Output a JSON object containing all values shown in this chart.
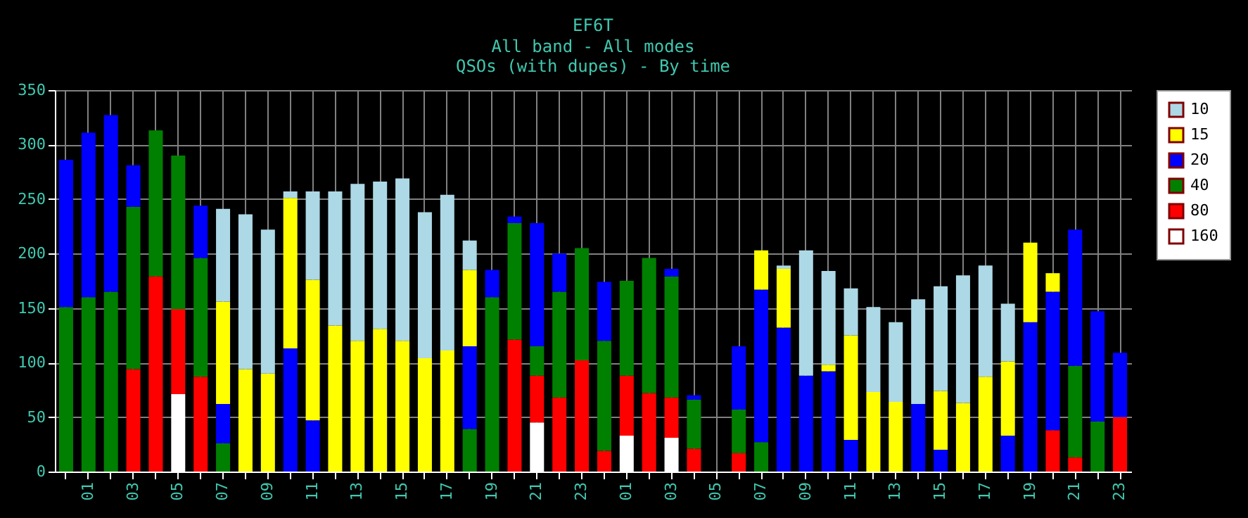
{
  "chart_data": {
    "type": "bar",
    "title": "EF6T",
    "subtitle": "All band - All modes\nQSOs (with dupes) - By time",
    "categories": [
      null,
      "01",
      null,
      "03",
      null,
      "05",
      null,
      "07",
      null,
      "09",
      null,
      "11",
      null,
      "13",
      null,
      "15",
      null,
      "17",
      null,
      "19",
      null,
      "21",
      null,
      "23",
      null,
      "01",
      null,
      "03",
      null,
      "05",
      null,
      "07",
      null,
      "09",
      null,
      "11",
      null,
      "13",
      null,
      "15",
      null,
      "17",
      null,
      "19",
      null,
      "21",
      null,
      "23"
    ],
    "stacked": true,
    "ylim": [
      0,
      350
    ],
    "yticks": [
      0,
      50,
      100,
      150,
      200,
      250,
      300,
      350
    ],
    "grid": true,
    "legend": "top right",
    "series": [
      {
        "name": "160",
        "color": "#ffffff",
        "values": [
          null,
          null,
          null,
          null,
          null,
          71,
          null,
          null,
          null,
          null,
          null,
          null,
          null,
          null,
          null,
          null,
          null,
          null,
          null,
          null,
          null,
          45,
          null,
          null,
          null,
          33,
          null,
          31,
          null,
          null,
          null,
          null,
          null,
          null,
          null,
          null,
          null,
          null,
          null,
          null,
          null,
          null,
          null,
          null,
          null,
          null,
          null,
          null
        ]
      },
      {
        "name": "80",
        "color": "#ff0000",
        "values": [
          null,
          null,
          null,
          94,
          179,
          78,
          87,
          null,
          null,
          null,
          null,
          null,
          null,
          null,
          null,
          null,
          null,
          null,
          null,
          null,
          121,
          43,
          68,
          102,
          19,
          55,
          72,
          37,
          21,
          null,
          17,
          null,
          null,
          null,
          null,
          null,
          null,
          null,
          null,
          null,
          null,
          null,
          null,
          null,
          38,
          13,
          null,
          50
        ]
      },
      {
        "name": "40",
        "color": "#008000",
        "values": [
          151,
          160,
          165,
          149,
          134,
          141,
          109,
          26,
          null,
          null,
          null,
          null,
          null,
          null,
          null,
          null,
          null,
          null,
          39,
          160,
          107,
          27,
          97,
          103,
          101,
          87,
          124,
          111,
          45,
          null,
          40,
          27,
          null,
          null,
          null,
          null,
          null,
          null,
          null,
          null,
          null,
          null,
          null,
          null,
          null,
          84,
          46,
          null
        ]
      },
      {
        "name": "20",
        "color": "#0000ff",
        "values": [
          135,
          151,
          162,
          38,
          null,
          null,
          48,
          36,
          null,
          null,
          113,
          47,
          null,
          null,
          null,
          null,
          null,
          null,
          76,
          25,
          6,
          113,
          35,
          null,
          54,
          null,
          null,
          7,
          4,
          null,
          58,
          140,
          132,
          88,
          92,
          29,
          null,
          null,
          62,
          20,
          null,
          null,
          33,
          137,
          127,
          125,
          101,
          59
        ]
      },
      {
        "name": "15",
        "color": "#ffff00",
        "values": [
          null,
          null,
          null,
          null,
          null,
          null,
          null,
          94,
          94,
          90,
          138,
          129,
          134,
          120,
          131,
          120,
          104,
          111,
          70,
          null,
          null,
          null,
          null,
          null,
          null,
          null,
          null,
          null,
          null,
          null,
          null,
          36,
          54,
          null,
          6,
          96,
          73,
          64,
          null,
          54,
          63,
          87,
          68,
          73,
          17,
          null,
          null,
          null
        ]
      },
      {
        "name": "10",
        "color": "#add8e6",
        "values": [
          null,
          null,
          null,
          null,
          null,
          null,
          null,
          85,
          142,
          132,
          6,
          81,
          123,
          144,
          135,
          149,
          134,
          143,
          27,
          null,
          null,
          null,
          null,
          null,
          null,
          null,
          null,
          null,
          null,
          null,
          null,
          null,
          3,
          115,
          86,
          43,
          78,
          73,
          96,
          96,
          117,
          102,
          53,
          null,
          null,
          null,
          null,
          null
        ]
      }
    ]
  }
}
